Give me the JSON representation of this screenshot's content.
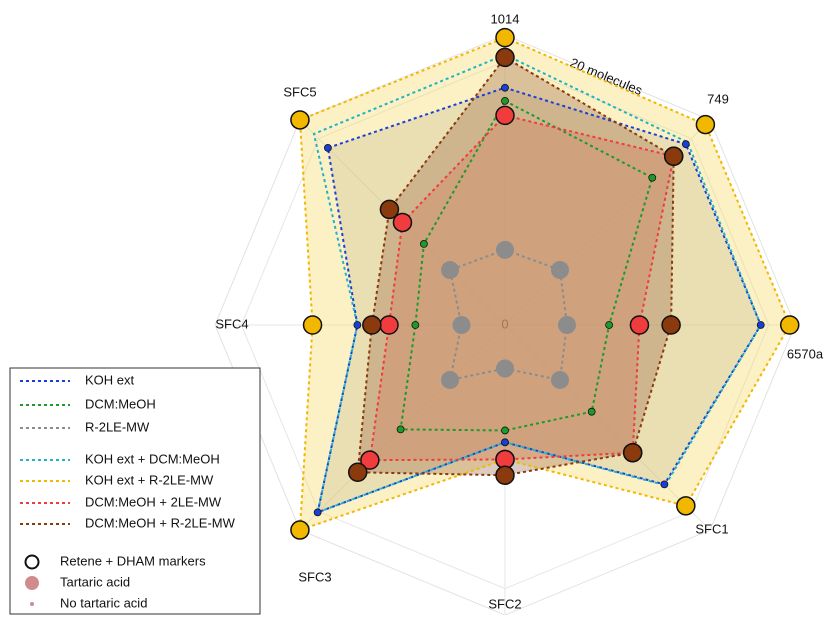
{
  "chart_data": {
    "type": "radar",
    "categories": [
      "1014",
      "749",
      "6570a",
      "SFC1",
      "SFC2",
      "SFC3",
      "SFC4",
      "SFC5"
    ],
    "rlim": [
      0,
      22
    ],
    "rticks": [
      {
        "value": 0,
        "label": "0"
      },
      {
        "value": 20,
        "label": "20 molecules"
      }
    ],
    "grid": true,
    "legend": "lower left",
    "series": [
      {
        "name": "KOH ext",
        "color": "#1a3fd6",
        "fill": "#b0b0b0",
        "marker": "small",
        "values": [
          18,
          19.4,
          19.4,
          17.1,
          8.9,
          20.1,
          11.2,
          19
        ]
      },
      {
        "name": "DCM:MeOH",
        "color": "#1e9a2a",
        "marker": "small",
        "values": [
          17,
          15.8,
          7.9,
          9.3,
          8,
          11.2,
          6.8,
          8.7
        ]
      },
      {
        "name": "R-2LE-MW",
        "color": "#8c8c8c",
        "marker": "large",
        "values": [
          5.7,
          5.9,
          4.7,
          5.9,
          3.3,
          5.9,
          3.3,
          5.9
        ]
      },
      {
        "name": "KOH ext + DCM:MeOH",
        "color": "#1fb3c4",
        "values": [
          20.5,
          19.6,
          19.4,
          17.2,
          8.9,
          20.1,
          11.2,
          20.5
        ]
      },
      {
        "name": "KOH ext + R-2LE-MW",
        "color": "#f2b800",
        "fill": "#f7d35a",
        "marker": "large",
        "values": [
          21.8,
          21.5,
          21.6,
          19.4,
          10.2,
          22,
          14.6,
          22
        ]
      },
      {
        "name": "DCM:MeOH + 2LE-MW",
        "color": "#f03c3c",
        "fill": "#f08a6a",
        "marker": "large",
        "values": [
          15.9,
          18.1,
          10.2,
          13.7,
          10.2,
          14.5,
          8.8,
          11
        ]
      },
      {
        "name": "DCM:MeOH + R-2LE-MW",
        "color": "#8a3a0c",
        "fill": "#9a6a4a",
        "marker": "large",
        "values": [
          20.3,
          18.1,
          12.6,
          13.7,
          11.4,
          15.8,
          10.1,
          12.4
        ]
      }
    ],
    "marker_legend": [
      "Retene + DHAM markers",
      "Tartaric acid",
      "No tartaric acid"
    ]
  }
}
